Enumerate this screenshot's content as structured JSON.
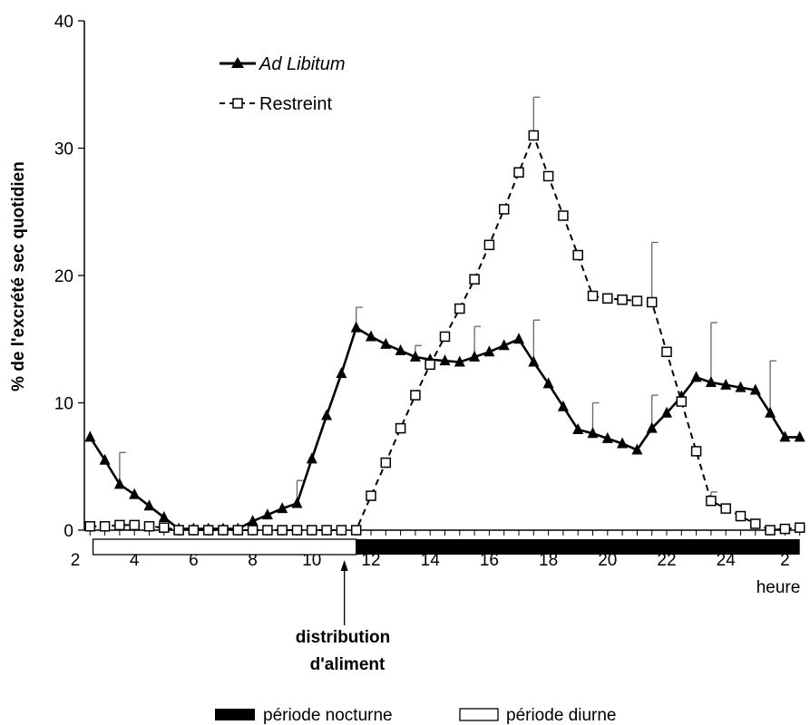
{
  "chart_data": {
    "type": "line",
    "ylabel": "% de l'excrété sec quotidien",
    "xunit_label": "heure",
    "ylim": [
      0,
      40
    ],
    "yticks": [
      0,
      10,
      20,
      30,
      40
    ],
    "xticks": [
      {
        "h": 2,
        "label": "2"
      },
      {
        "h": 4,
        "label": "4"
      },
      {
        "h": 6,
        "label": "6"
      },
      {
        "h": 8,
        "label": "8"
      },
      {
        "h": 10,
        "label": "10"
      },
      {
        "h": 12,
        "label": "12"
      },
      {
        "h": 14,
        "label": "14"
      },
      {
        "h": 16,
        "label": "16"
      },
      {
        "h": 18,
        "label": "18"
      },
      {
        "h": 20,
        "label": "20"
      },
      {
        "h": 22,
        "label": "22"
      },
      {
        "h": 24,
        "label": "24"
      },
      {
        "h": 26,
        "label": "2"
      }
    ],
    "series": [
      {
        "name": "Ad Libitum",
        "style": "solid",
        "marker": "triangle",
        "x": [
          2.5,
          3,
          3.5,
          4,
          4.5,
          5,
          5.5,
          6,
          6.5,
          7,
          7.5,
          8,
          8.5,
          9,
          9.5,
          10,
          10.5,
          11,
          11.5,
          12,
          12.5,
          13,
          13.5,
          14,
          14.5,
          15,
          15.5,
          16,
          16.5,
          17,
          17.5,
          18,
          18.5,
          19,
          19.5,
          20,
          20.5,
          21,
          21.5,
          22,
          22.5,
          23,
          23.5,
          24,
          24.5,
          25,
          25.5,
          26,
          26.5
        ],
        "y": [
          7.3,
          5.5,
          3.6,
          2.8,
          1.9,
          1.0,
          0.1,
          0.1,
          0.1,
          0.1,
          0.1,
          0.7,
          1.2,
          1.7,
          2.1,
          5.6,
          9.0,
          12.3,
          15.9,
          15.2,
          14.6,
          14.1,
          13.6,
          13.4,
          13.3,
          13.2,
          13.6,
          14.0,
          14.5,
          15.0,
          13.2,
          11.5,
          9.7,
          7.9,
          7.6,
          7.2,
          6.8,
          6.3,
          8.0,
          9.2,
          10.5,
          12.0,
          11.6,
          11.4,
          11.2,
          11.0,
          9.2,
          7.3,
          7.3
        ],
        "error_bars": [
          {
            "x": 3.5,
            "top": 6.1
          },
          {
            "x": 9.5,
            "top": 3.9
          },
          {
            "x": 11.5,
            "top": 17.5
          },
          {
            "x": 13.5,
            "top": 14.5
          },
          {
            "x": 15.5,
            "top": 16.0
          },
          {
            "x": 17.5,
            "top": 16.5
          },
          {
            "x": 19.5,
            "top": 10.0
          },
          {
            "x": 21.5,
            "top": 10.6
          },
          {
            "x": 23.5,
            "top": 16.3
          },
          {
            "x": 25.5,
            "top": 13.3
          }
        ]
      },
      {
        "name": "Restreint",
        "style": "dashed",
        "marker": "square",
        "x": [
          2.5,
          3,
          3.5,
          4,
          4.5,
          5,
          5.5,
          6,
          6.5,
          7,
          7.5,
          8,
          8.5,
          9,
          9.5,
          10,
          10.5,
          11,
          11.5,
          12,
          12.5,
          13,
          13.5,
          14,
          14.5,
          15,
          15.5,
          16,
          16.5,
          17,
          17.5,
          18,
          18.5,
          19,
          19.5,
          20,
          20.5,
          21,
          21.5,
          22,
          22.5,
          23,
          23.5,
          24,
          24.5,
          25,
          25.5,
          26,
          26.5
        ],
        "y": [
          0.3,
          0.3,
          0.4,
          0.4,
          0.3,
          0.2,
          0.0,
          0.0,
          0.0,
          0.0,
          0.0,
          0.0,
          0.0,
          0.0,
          0.0,
          0.0,
          0.0,
          0.0,
          0.0,
          2.7,
          5.3,
          8.0,
          10.6,
          13.0,
          15.2,
          17.4,
          19.7,
          22.4,
          25.2,
          28.1,
          31.0,
          27.8,
          24.7,
          21.6,
          18.4,
          18.2,
          18.1,
          18.0,
          17.9,
          14.0,
          10.1,
          6.2,
          2.3,
          1.7,
          1.1,
          0.5,
          0.0,
          0.1,
          0.2
        ],
        "error_bars": [
          {
            "x": 17.5,
            "top": 34.0
          },
          {
            "x": 21.5,
            "top": 22.6
          },
          {
            "x": 23.5,
            "top": 3.0
          }
        ]
      }
    ],
    "period_bar": {
      "day": {
        "from": 2.6,
        "to": 11.5
      },
      "night": {
        "from": 11.5,
        "to": 26.5
      }
    },
    "annotation": {
      "line1": "distribution",
      "line2": "d'aliment",
      "arrow_x": 11.1
    },
    "bottom_legend": {
      "night_label": "période nocturne",
      "day_label": "période diurne"
    }
  }
}
